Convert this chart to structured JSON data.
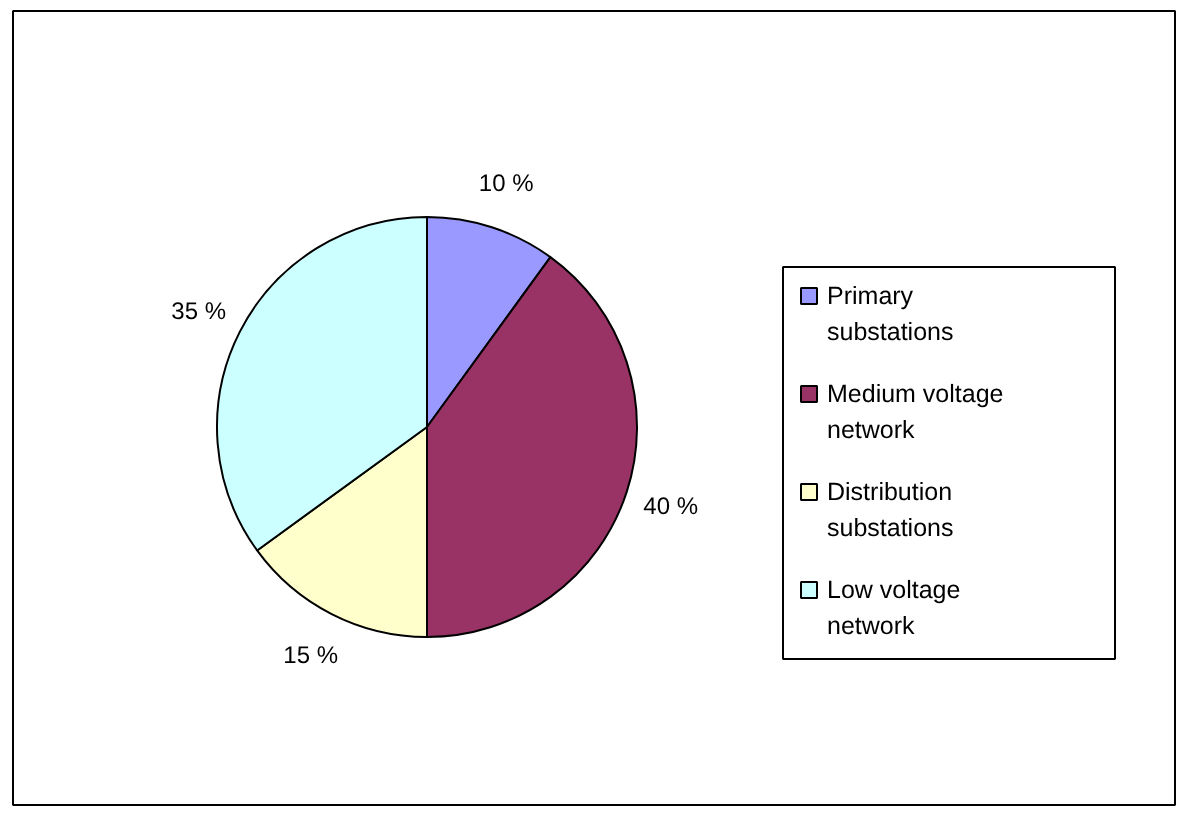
{
  "chart_data": {
    "type": "pie",
    "categories": [
      "Primary substations",
      "Medium voltage network",
      "Distribution substations",
      "Low voltage network"
    ],
    "values": [
      10,
      40,
      15,
      35
    ],
    "colors": [
      "#9999ff",
      "#993366",
      "#ffffcc",
      "#ccffff"
    ],
    "value_labels": [
      "10 %",
      "40 %",
      "15 %",
      "35 %"
    ],
    "legend": "right"
  }
}
